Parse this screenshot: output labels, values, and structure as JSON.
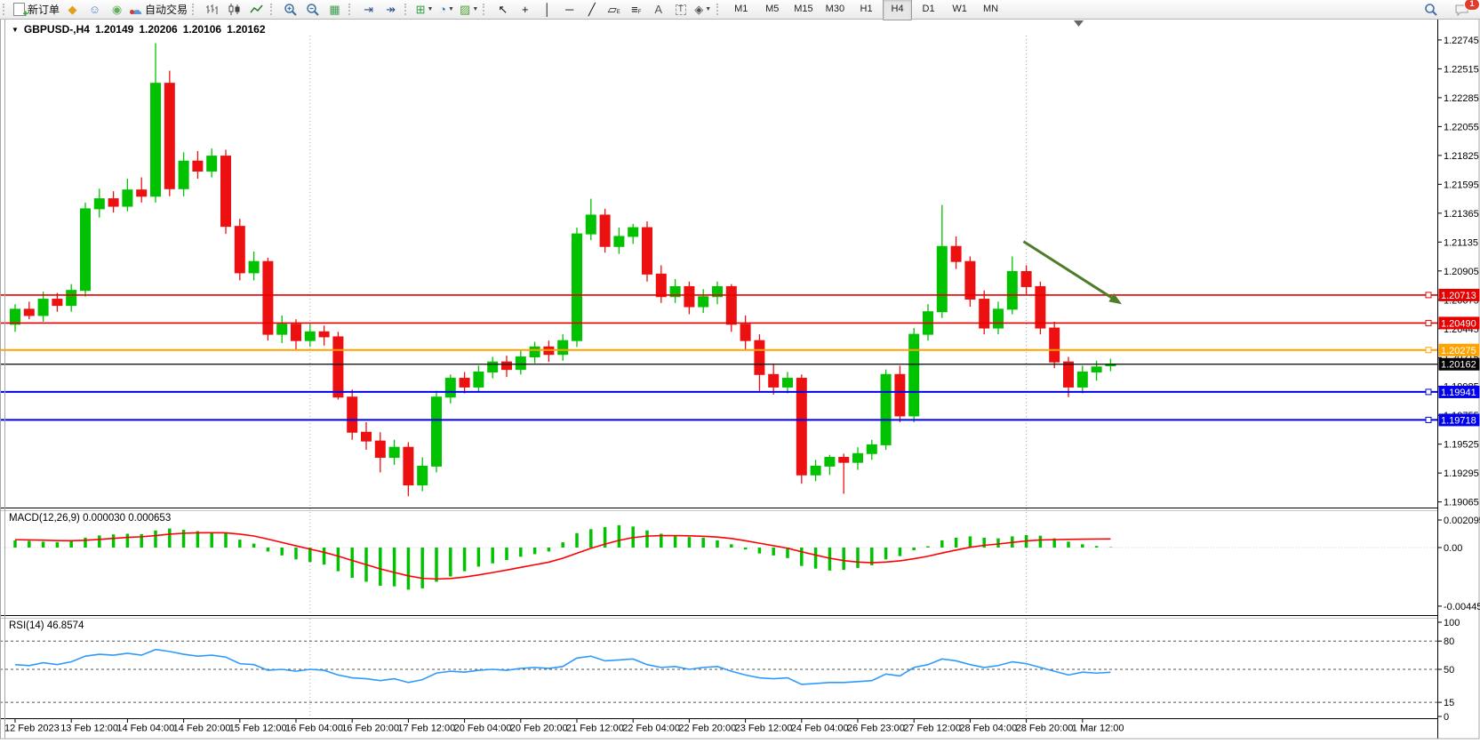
{
  "toolbar": {
    "items": [
      {
        "name": "new-order-button",
        "kind": "neworder",
        "label": "新订单",
        "grip": true
      },
      {
        "name": "market-icon",
        "kind": "glyph",
        "glyph": "◆",
        "color": "#dfa018"
      },
      {
        "name": "community-icon",
        "kind": "glyph",
        "glyph": "☺",
        "color": "#4b86c8"
      },
      {
        "name": "signals-icon",
        "kind": "glyph",
        "glyph": "◉",
        "color": "#63b05c"
      },
      {
        "name": "autotrade-button",
        "kind": "autotrade",
        "label": "自动交易"
      },
      {
        "name": "bar-chart-icon",
        "kind": "svg",
        "svg": "bars",
        "grip": true
      },
      {
        "name": "candlestick-chart-icon",
        "kind": "svg",
        "svg": "candles"
      },
      {
        "name": "line-chart-icon",
        "kind": "svg",
        "svg": "linechart"
      },
      {
        "name": "zoom-in-icon",
        "kind": "svg",
        "svg": "zoomin",
        "grip": true
      },
      {
        "name": "zoom-out-icon",
        "kind": "svg",
        "svg": "zoomout"
      },
      {
        "name": "tile-windows-icon",
        "kind": "glyph",
        "glyph": "▦",
        "color": "#3c9e4e"
      },
      {
        "name": "chart-shift-icon",
        "kind": "glyph",
        "glyph": "⇥",
        "color": "#2c4f8a",
        "grip": true
      },
      {
        "name": "auto-scroll-icon",
        "kind": "glyph",
        "glyph": "↠",
        "color": "#2c4f8a"
      },
      {
        "name": "new-chart-button",
        "kind": "glyph",
        "glyph": "⊞",
        "color": "#2f9e41",
        "dd": true,
        "grip": true
      },
      {
        "name": "period-button",
        "kind": "glyph",
        "glyph": "◔",
        "color": "#2b6fb3",
        "dd": true
      },
      {
        "name": "template-button",
        "kind": "glyph",
        "glyph": "▨",
        "color": "#58a23c",
        "dd": true
      },
      {
        "name": "cursor-icon",
        "kind": "glyph",
        "glyph": "↖",
        "color": "#111",
        "grip": true
      },
      {
        "name": "crosshair-icon",
        "kind": "glyph",
        "glyph": "+",
        "color": "#111"
      },
      {
        "name": "vertical-line-icon",
        "kind": "glyph",
        "glyph": "│",
        "color": "#111"
      },
      {
        "name": "horizontal-line-icon",
        "kind": "glyph",
        "glyph": "─",
        "color": "#111"
      },
      {
        "name": "trendline-icon",
        "kind": "glyph",
        "glyph": "╱",
        "color": "#111"
      },
      {
        "name": "equidistant-channel-icon",
        "kind": "glyphsub",
        "glyph": "▱",
        "sub": "E",
        "color": "#111"
      },
      {
        "name": "fibonacci-icon",
        "kind": "glyphsub",
        "glyph": "≡",
        "sub": "F",
        "color": "#111"
      },
      {
        "name": "text-icon",
        "kind": "glyph",
        "glyph": "A",
        "color": "#555"
      },
      {
        "name": "text-label-icon",
        "kind": "glyph",
        "glyph": "T",
        "color": "#555",
        "boxed": true
      },
      {
        "name": "arrows-icon",
        "kind": "glyph",
        "glyph": "◈",
        "color": "#555",
        "dd": true
      }
    ],
    "timeframes": [
      "M1",
      "M5",
      "M15",
      "M30",
      "H1",
      "H4",
      "D1",
      "W1",
      "MN"
    ],
    "active_timeframe": "H4",
    "notifications": {
      "count": "1"
    }
  },
  "chart": {
    "title": {
      "menu_glyph": "▼",
      "symbol_period": "GBPUSD-,H4",
      "open": "1.20149",
      "high": "1.20206",
      "low": "1.20106",
      "close": "1.20162"
    },
    "colors": {
      "up": "#00c200",
      "down": "#ed1010",
      "background": "#ffffff",
      "axis_text": "#000000",
      "arrow": "#4e7d2a"
    }
  },
  "chart_data": [
    {
      "type": "candlestick",
      "symbol": "GBPUSD-",
      "period": "H4",
      "ylim": [
        1.1902,
        1.2278
      ],
      "x_labels": [
        "12 Feb 2023",
        "13 Feb 12:00",
        "14 Feb 04:00",
        "14 Feb 20:00",
        "15 Feb 12:00",
        "16 Feb 04:00",
        "16 Feb 20:00",
        "17 Feb 12:00",
        "20 Feb 04:00",
        "20 Feb 20:00",
        "21 Feb 12:00",
        "22 Feb 04:00",
        "22 Feb 20:00",
        "23 Feb 12:00",
        "24 Feb 04:00",
        "26 Feb 23:00",
        "27 Feb 12:00",
        "28 Feb 04:00",
        "28 Feb 20:00",
        "1 Mar 12:00"
      ],
      "y_ticks": [
        "1.22745",
        "1.22515",
        "1.22285",
        "1.22055",
        "1.21825",
        "1.21595",
        "1.21365",
        "1.21135",
        "1.20905",
        "1.20675",
        "1.20445",
        "1.20215",
        "1.19985",
        "1.19755",
        "1.19525",
        "1.19295",
        "1.19065"
      ],
      "week_separator_bars": [
        21,
        72
      ],
      "candles": [
        [
          1.2048,
          1.2064,
          1.2042,
          1.206
        ],
        [
          1.206,
          1.2066,
          1.2052,
          1.2055
        ],
        [
          1.2055,
          1.2074,
          1.205,
          1.2068
        ],
        [
          1.2068,
          1.2073,
          1.2058,
          1.2063
        ],
        [
          1.2063,
          1.208,
          1.2058,
          1.2075
        ],
        [
          1.2075,
          1.2145,
          1.207,
          1.214
        ],
        [
          1.214,
          1.2156,
          1.2133,
          1.2148
        ],
        [
          1.2148,
          1.2154,
          1.2137,
          1.2142
        ],
        [
          1.2142,
          1.2164,
          1.2138,
          1.2155
        ],
        [
          1.2155,
          1.2165,
          1.2145,
          1.215
        ],
        [
          1.215,
          1.2272,
          1.2145,
          1.224
        ],
        [
          1.224,
          1.225,
          1.215,
          1.2156
        ],
        [
          1.2156,
          1.2185,
          1.215,
          1.2178
        ],
        [
          1.2178,
          1.2186,
          1.2164,
          1.217
        ],
        [
          1.217,
          1.2188,
          1.2165,
          1.2182
        ],
        [
          1.2182,
          1.2187,
          1.212,
          1.2126
        ],
        [
          1.2126,
          1.2132,
          1.2083,
          1.2089
        ],
        [
          1.2089,
          1.2106,
          1.2083,
          1.2098
        ],
        [
          1.2098,
          1.2101,
          1.2035,
          1.204
        ],
        [
          1.204,
          1.2055,
          1.2033,
          1.2048
        ],
        [
          1.2048,
          1.2052,
          1.2028,
          1.2035
        ],
        [
          1.2035,
          1.2048,
          1.203,
          1.2042
        ],
        [
          1.2042,
          1.2047,
          1.2031,
          1.2038
        ],
        [
          1.2038,
          1.2042,
          1.1988,
          1.199
        ],
        [
          1.199,
          1.1996,
          1.1956,
          1.1962
        ],
        [
          1.1962,
          1.197,
          1.1948,
          1.1955
        ],
        [
          1.1955,
          1.1962,
          1.193,
          1.1942
        ],
        [
          1.1942,
          1.1956,
          1.1936,
          1.195
        ],
        [
          1.195,
          1.1954,
          1.1911,
          1.192
        ],
        [
          1.192,
          1.1942,
          1.1915,
          1.1935
        ],
        [
          1.1935,
          1.1995,
          1.193,
          1.199
        ],
        [
          1.199,
          1.2008,
          1.1985,
          1.2005
        ],
        [
          1.2005,
          1.201,
          1.1993,
          1.1998
        ],
        [
          1.1998,
          1.2015,
          1.1994,
          1.201
        ],
        [
          1.201,
          1.2022,
          1.2005,
          1.2018
        ],
        [
          1.2018,
          1.2023,
          1.2006,
          1.2012
        ],
        [
          1.2012,
          1.2028,
          1.2008,
          1.2022
        ],
        [
          1.2022,
          1.2034,
          1.2017,
          1.203
        ],
        [
          1.203,
          1.2035,
          1.2018,
          1.2024
        ],
        [
          1.2024,
          1.204,
          1.2019,
          1.2035
        ],
        [
          1.2035,
          1.2125,
          1.203,
          1.212
        ],
        [
          1.212,
          1.2148,
          1.2115,
          1.2135
        ],
        [
          1.2135,
          1.214,
          1.2105,
          1.211
        ],
        [
          1.211,
          1.2125,
          1.2104,
          1.2118
        ],
        [
          1.2118,
          1.2128,
          1.2112,
          1.2125
        ],
        [
          1.2125,
          1.213,
          1.2082,
          1.2088
        ],
        [
          1.2088,
          1.2095,
          1.2065,
          1.207
        ],
        [
          1.207,
          1.2084,
          1.2065,
          1.2078
        ],
        [
          1.2078,
          1.2082,
          1.2056,
          1.2062
        ],
        [
          1.2062,
          1.2076,
          1.2057,
          1.207
        ],
        [
          1.207,
          1.2082,
          1.2064,
          1.2078
        ],
        [
          1.2078,
          1.208,
          1.2042,
          1.2048
        ],
        [
          1.2048,
          1.2055,
          1.2028,
          1.2035
        ],
        [
          1.2035,
          1.204,
          1.1995,
          1.2008
        ],
        [
          1.2008,
          1.2016,
          1.1992,
          1.1998
        ],
        [
          1.1998,
          1.201,
          1.1993,
          1.2005
        ],
        [
          1.2005,
          1.2008,
          1.1921,
          1.1928
        ],
        [
          1.1928,
          1.194,
          1.1923,
          1.1935
        ],
        [
          1.1935,
          1.1944,
          1.1928,
          1.1942
        ],
        [
          1.1942,
          1.1945,
          1.1913,
          1.1938
        ],
        [
          1.1938,
          1.195,
          1.1932,
          1.1945
        ],
        [
          1.1945,
          1.1956,
          1.194,
          1.1952
        ],
        [
          1.1952,
          1.2012,
          1.1948,
          1.2008
        ],
        [
          1.2008,
          1.2015,
          1.197,
          1.1975
        ],
        [
          1.1975,
          1.2045,
          1.197,
          1.204
        ],
        [
          1.204,
          1.2064,
          1.2035,
          1.2058
        ],
        [
          1.2058,
          1.2143,
          1.2053,
          1.211
        ],
        [
          1.211,
          1.2118,
          1.2092,
          1.2098
        ],
        [
          1.2098,
          1.2102,
          1.2062,
          1.2068
        ],
        [
          1.2068,
          1.2075,
          1.204,
          1.2045
        ],
        [
          1.2045,
          1.2066,
          1.204,
          1.206
        ],
        [
          1.206,
          1.2102,
          1.2056,
          1.209
        ],
        [
          1.209,
          1.2095,
          1.2072,
          1.2078
        ],
        [
          1.2078,
          1.2082,
          1.204,
          1.2045
        ],
        [
          1.2045,
          1.205,
          1.2013,
          1.2018
        ],
        [
          1.2018,
          1.2022,
          1.199,
          1.1998
        ],
        [
          1.1998,
          1.2015,
          1.1993,
          1.201
        ],
        [
          1.201,
          1.2019,
          1.2003,
          1.2014
        ],
        [
          1.20149,
          1.20206,
          1.20106,
          1.20162
        ]
      ],
      "hlines": [
        {
          "price": 1.20713,
          "label": "1.20713",
          "color": "#e60000",
          "thickness": 1.6
        },
        {
          "price": 1.2049,
          "label": "1.20490",
          "color": "#e60000",
          "thickness": 1.6
        },
        {
          "price": 1.20275,
          "label": "1.20275",
          "color": "#ffa200",
          "thickness": 2
        },
        {
          "price": 1.19941,
          "label": "1.19941",
          "color": "#0000ee",
          "thickness": 2
        },
        {
          "price": 1.19718,
          "label": "1.19718",
          "color": "#0000ee",
          "thickness": 2
        }
      ],
      "bid_line": {
        "price": 1.20162,
        "label": "1.20162",
        "color": "#000000",
        "thickness": 1.2
      },
      "arrow": {
        "name": "downtrend-arrow",
        "color": "#4e7d2a",
        "from": {
          "bar": 71.8,
          "price": 1.2114
        },
        "to": {
          "bar": 78.8,
          "price": 1.2064
        }
      }
    },
    {
      "type": "macd",
      "label": "MACD(12,26,9) 0.000030 0.000653",
      "name": "MACD",
      "params": [
        12,
        26,
        9
      ],
      "current_macd": 3e-05,
      "current_signal": 0.000653,
      "y_ticks": [
        "0.002095",
        "0.00",
        "-0.004455"
      ],
      "colors": {
        "histogram": "#00c300",
        "signal": "#ff0000"
      },
      "macd": [
        0.00055,
        0.0005,
        0.00045,
        0.00042,
        0.00048,
        0.00075,
        0.00092,
        0.001,
        0.00105,
        0.00102,
        0.0013,
        0.00145,
        0.00135,
        0.00125,
        0.00118,
        0.0011,
        0.0006,
        0.0003,
        -0.0003,
        -0.0006,
        -0.0009,
        -0.0011,
        -0.0013,
        -0.0018,
        -0.0023,
        -0.0026,
        -0.0029,
        -0.00295,
        -0.0032,
        -0.0031,
        -0.0026,
        -0.0022,
        -0.0018,
        -0.00145,
        -0.0012,
        -0.00095,
        -0.0007,
        -0.0005,
        -0.0003,
        0.0004,
        0.0011,
        0.0014,
        0.00155,
        0.0017,
        0.0016,
        0.0013,
        0.00105,
        0.0009,
        0.0008,
        0.00075,
        0.00055,
        0.00025,
        -0.00015,
        -0.00045,
        -0.0006,
        -0.0008,
        -0.0014,
        -0.0016,
        -0.00175,
        -0.0017,
        -0.00155,
        -0.00135,
        -0.0009,
        -0.00065,
        -0.0002,
        0.0001,
        0.00055,
        0.00075,
        0.00085,
        0.00075,
        0.0007,
        0.00085,
        0.00095,
        0.0009,
        0.0007,
        0.00045,
        0.00025,
        0.00012,
        3e-05
      ],
      "signal": [
        0.0006,
        0.00058,
        0.00056,
        0.00053,
        0.00052,
        0.00055,
        0.00062,
        0.0007,
        0.00077,
        0.00082,
        0.00091,
        0.00102,
        0.00109,
        0.00112,
        0.00113,
        0.00112,
        0.00102,
        0.00088,
        0.00064,
        0.00039,
        0.00013,
        -0.00012,
        -0.00036,
        -0.00065,
        -0.00098,
        -0.0013,
        -0.00162,
        -0.00189,
        -0.00215,
        -0.00234,
        -0.00239,
        -0.00235,
        -0.00224,
        -0.00208,
        -0.0019,
        -0.00171,
        -0.00151,
        -0.00131,
        -0.00111,
        -0.00081,
        -0.00043,
        -6e-05,
        0.00026,
        0.00055,
        0.00076,
        0.00087,
        0.00091,
        0.00091,
        0.00089,
        0.00086,
        0.0008,
        0.00069,
        0.00052,
        0.00033,
        0.00014,
        -5e-05,
        -0.00032,
        -0.00057,
        -0.00081,
        -0.00099,
        -0.0011,
        -0.00115,
        -0.0011,
        -0.00101,
        -0.00085,
        -0.00066,
        -0.00042,
        -0.00019,
        2e-05,
        0.00017,
        0.00027,
        0.00039,
        0.0005,
        0.00058,
        0.0006,
        0.00062,
        0.00064,
        0.00065,
        0.000653
      ]
    },
    {
      "type": "rsi",
      "label": "RSI(14) 46.8574",
      "period": 14,
      "current": 46.8574,
      "levels": [
        80,
        50,
        15
      ],
      "y_ticks": [
        "100",
        "80",
        "50",
        "15",
        "0"
      ],
      "color": "#2e9afe",
      "values": [
        55,
        54,
        57,
        55,
        58,
        64,
        66,
        65,
        67,
        65,
        71,
        69,
        66,
        64,
        65,
        63,
        56,
        55,
        49,
        50,
        48,
        50,
        49,
        44,
        41,
        40,
        38,
        40,
        36,
        39,
        46,
        48,
        47,
        49,
        50,
        49,
        51,
        52,
        51,
        53,
        62,
        64,
        59,
        60,
        61,
        55,
        52,
        53,
        50,
        52,
        53,
        48,
        44,
        41,
        40,
        41,
        34,
        35,
        36,
        36,
        37,
        38,
        45,
        43,
        52,
        55,
        61,
        59,
        55,
        52,
        54,
        58,
        56,
        52,
        48,
        44,
        47,
        46,
        46.8574
      ]
    }
  ]
}
